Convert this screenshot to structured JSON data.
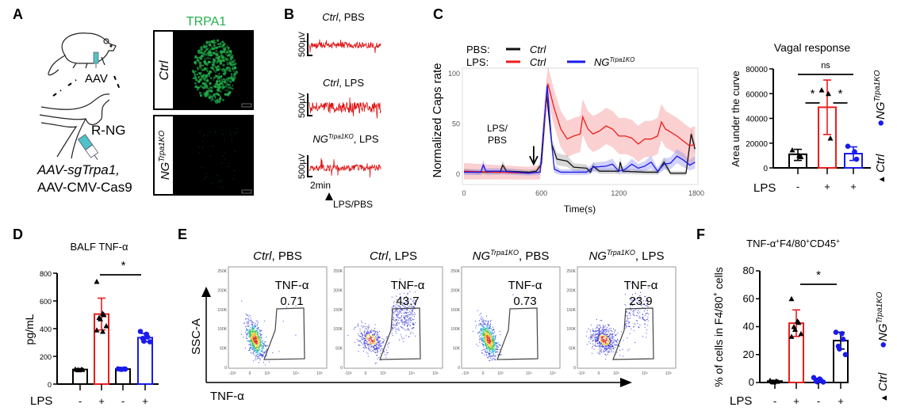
{
  "panel_labels": {
    "a": "A",
    "b": "B",
    "c": "C",
    "d": "D",
    "e": "E",
    "f": "F"
  },
  "panel_a": {
    "stain_title": "TRPA1",
    "stain_color": "#22b14c",
    "row_ctrl": "Ctrl",
    "row_ng_base": "NG",
    "row_ng_sup": "Trpa1KO",
    "injection_label": "AAV",
    "ganglion_label": "R-NG",
    "vector_line1": "AAV-sgTrpa1,",
    "vector_line2": "AAV-CMV-Cas9",
    "syringe_color": "#4fc3c9"
  },
  "panel_b": {
    "trace_color": "#e01010",
    "traces": [
      {
        "title_italic": "Ctrl",
        "title_rest": ", PBS"
      },
      {
        "title_italic": "Ctrl",
        "title_rest": ", LPS"
      },
      {
        "title_base": "NG",
        "title_sup": "Trpa1KO",
        "title_rest": ", LPS"
      }
    ],
    "scale_voltage": "500µV",
    "scale_time": "2min",
    "stimulus": "LPS/PBS"
  },
  "chart_data": [
    {
      "id": "C",
      "type": "line",
      "xlabel": "Time(s)",
      "ylabel": "Normalized Caps rate",
      "xlim": [
        0,
        1800
      ],
      "ylim": [
        -10,
        105
      ],
      "xticks": [
        "0",
        "600",
        "1200",
        "1800"
      ],
      "yticks": [
        "0",
        "50",
        "100"
      ],
      "grid": false,
      "annotation_line1": "LPS/",
      "annotation_line2": "PBS",
      "annotation_time": 540,
      "legend": {
        "row1_label": "PBS:",
        "row2_label": "LPS:",
        "ctrl": "Ctrl",
        "ng_base": "NG",
        "ng_sup": "Trpa1KO",
        "placement": "top"
      },
      "series": [
        {
          "group": "PBS",
          "name": "Ctrl",
          "color": "#111111",
          "band_color": "#9a9a9a",
          "sd": 6,
          "points": [
            [
              0,
              3
            ],
            [
              100,
              2
            ],
            [
              280,
              2
            ],
            [
              300,
              9
            ],
            [
              330,
              3
            ],
            [
              500,
              2
            ],
            [
              560,
              3
            ],
            [
              600,
              10
            ],
            [
              640,
              80
            ],
            [
              680,
              30
            ],
            [
              720,
              15
            ],
            [
              800,
              13
            ],
            [
              850,
              7
            ],
            [
              950,
              6
            ],
            [
              980,
              2
            ],
            [
              1000,
              8
            ],
            [
              1050,
              3
            ],
            [
              1200,
              3
            ],
            [
              1210,
              12
            ],
            [
              1230,
              3
            ],
            [
              1400,
              2
            ],
            [
              1500,
              2
            ],
            [
              1550,
              12
            ],
            [
              1600,
              1
            ],
            [
              1720,
              1
            ],
            [
              1760,
              40
            ],
            [
              1790,
              25
            ]
          ]
        },
        {
          "group": "LPS",
          "name": "Ctrl",
          "color": "#ee1c1c",
          "band_color": "#f48a8a",
          "sd": 18,
          "points": [
            [
              0,
              3
            ],
            [
              500,
              1
            ],
            [
              590,
              2
            ],
            [
              620,
              50
            ],
            [
              650,
              90
            ],
            [
              700,
              65
            ],
            [
              750,
              45
            ],
            [
              800,
              35
            ],
            [
              850,
              38
            ],
            [
              900,
              40
            ],
            [
              920,
              57
            ],
            [
              960,
              45
            ],
            [
              1000,
              40
            ],
            [
              1050,
              43
            ],
            [
              1100,
              48
            ],
            [
              1150,
              45
            ],
            [
              1200,
              38
            ],
            [
              1250,
              38
            ],
            [
              1300,
              36
            ],
            [
              1350,
              30
            ],
            [
              1400,
              35
            ],
            [
              1450,
              35
            ],
            [
              1500,
              38
            ],
            [
              1530,
              52
            ],
            [
              1560,
              45
            ],
            [
              1600,
              42
            ],
            [
              1650,
              38
            ],
            [
              1700,
              33
            ],
            [
              1750,
              28
            ],
            [
              1790,
              30
            ]
          ]
        },
        {
          "group": "LPS",
          "name": "NG Trpa1KO",
          "color": "#1a1aee",
          "band_color": "#8f8ff0",
          "sd": 7,
          "points": [
            [
              0,
              2
            ],
            [
              130,
              2
            ],
            [
              150,
              9
            ],
            [
              170,
              3
            ],
            [
              300,
              3
            ],
            [
              500,
              1
            ],
            [
              590,
              2
            ],
            [
              620,
              50
            ],
            [
              645,
              88
            ],
            [
              680,
              30
            ],
            [
              700,
              5
            ],
            [
              750,
              2
            ],
            [
              900,
              2
            ],
            [
              950,
              2
            ],
            [
              1000,
              7
            ],
            [
              1100,
              8
            ],
            [
              1150,
              10
            ],
            [
              1200,
              3
            ],
            [
              1250,
              5
            ],
            [
              1300,
              10
            ],
            [
              1350,
              6
            ],
            [
              1400,
              8
            ],
            [
              1450,
              12
            ],
            [
              1500,
              3
            ],
            [
              1550,
              10
            ],
            [
              1600,
              11
            ],
            [
              1650,
              18
            ],
            [
              1700,
              14
            ],
            [
              1750,
              9
            ],
            [
              1790,
              12
            ]
          ]
        }
      ]
    },
    {
      "id": "C-vagal",
      "type": "bar",
      "title": "Vagal response",
      "ylabel": "Area under the curve",
      "ylim": [
        0,
        80000
      ],
      "yticks": [
        "0",
        "20000",
        "40000",
        "60000",
        "80000"
      ],
      "row_label": "LPS",
      "categories": [
        "-",
        "+",
        "+"
      ],
      "bars": [
        {
          "value": 11000,
          "err": [
            6000,
            15000
          ],
          "color": "#000000",
          "marker": "triangle",
          "marker_color": "#000000",
          "points": [
            14500,
            10000,
            9000
          ]
        },
        {
          "value": 49000,
          "err": [
            27000,
            71000
          ],
          "color": "#ee1c1c",
          "marker": "triangle",
          "marker_color": "#000000",
          "points": [
            63000,
            60000,
            24000
          ]
        },
        {
          "value": 11500,
          "err": [
            6000,
            17000
          ],
          "color": "#1a1aee",
          "marker": "circle",
          "marker_color": "#1a1aee",
          "points": [
            17500,
            13000,
            7000
          ]
        }
      ],
      "significance": [
        {
          "text": "*",
          "between": [
            0,
            1
          ]
        },
        {
          "text": "*",
          "between": [
            1,
            2
          ]
        },
        {
          "text": "ns",
          "between": [
            0,
            2
          ]
        }
      ],
      "legend": {
        "ng_base": "NG",
        "ng_sup": "Trpa1KO",
        "ctrl": "Ctrl",
        "placement": "right"
      }
    },
    {
      "id": "D",
      "type": "bar",
      "title": "BALF TNF-α",
      "ylabel": "pg/mL",
      "ylim": [
        0,
        800
      ],
      "yticks": [
        "0",
        "200",
        "400",
        "600",
        "800"
      ],
      "row_label": "LPS",
      "categories": [
        "-",
        "+",
        "-",
        "+"
      ],
      "bars": [
        {
          "value": 105,
          "err": [
            100,
            110
          ],
          "color": "#000000",
          "marker": "triangle",
          "marker_color": "#000000",
          "points": [
            108,
            106,
            104,
            103,
            102
          ]
        },
        {
          "value": 505,
          "err": [
            390,
            620
          ],
          "color": "#ee1c1c",
          "marker": "triangle",
          "marker_color": "#000000",
          "points": [
            740,
            510,
            500,
            480,
            470,
            420,
            390,
            380
          ]
        },
        {
          "value": 108,
          "err": [
            104,
            112
          ],
          "color": "#000000",
          "marker": "circle",
          "marker_color": "#1a1aee",
          "points": [
            110,
            109,
            108,
            107,
            106
          ]
        },
        {
          "value": 335,
          "err": [
            305,
            365
          ],
          "color": "#1a1aee",
          "marker": "circle",
          "marker_color": "#1a1aee",
          "points": [
            380,
            360,
            340,
            330,
            310,
            305
          ]
        }
      ],
      "significance": [
        {
          "text": "*",
          "between": [
            1,
            3
          ]
        }
      ]
    },
    {
      "id": "E",
      "type": "scatter",
      "xlabel": "TNF-α",
      "ylabel": "SSC-A",
      "yticks": [
        "250K",
        "200K",
        "150K",
        "100K",
        "50K",
        "0"
      ],
      "xticks": [
        "-10³",
        "0",
        "10³",
        "10⁴",
        "10⁵"
      ],
      "gate_label": "TNF-α",
      "panels": [
        {
          "title_italic": "Ctrl",
          "title_rest": ", PBS",
          "gate_value": "0.71",
          "tnf_positive_percent": 0.71
        },
        {
          "title_italic": "Ctrl",
          "title_rest": ", LPS",
          "gate_value": "43.7",
          "tnf_positive_percent": 43.7
        },
        {
          "title_base": "NG",
          "title_sup": "Trpa1KO",
          "title_rest": ", PBS",
          "gate_value": "0.73",
          "tnf_positive_percent": 0.73
        },
        {
          "title_base": "NG",
          "title_sup": "Trpa1KO",
          "title_rest": ", LPS",
          "gate_value": "23.9",
          "tnf_positive_percent": 23.9
        }
      ]
    },
    {
      "id": "F",
      "type": "bar",
      "title_main": "TNF-α",
      "title_sup1": "+",
      "title_mid": "F4/80",
      "title_sup2": "+",
      "title_end": "CD45",
      "title_sup3": "+",
      "ylabel_main": "% of  cells in F4/80",
      "ylabel_sup": "+",
      "ylabel_end": " cells",
      "ylim": [
        0,
        80
      ],
      "yticks": [
        "0",
        "20",
        "40",
        "60",
        "80"
      ],
      "row_label": "LPS",
      "categories": [
        "-",
        "+",
        "-",
        "+"
      ],
      "bars": [
        {
          "value": 1,
          "err": [
            0.5,
            1.5
          ],
          "color": "#000000",
          "marker": "triangle",
          "marker_color": "#000000",
          "points": [
            1.5,
            1,
            0.8,
            0.5,
            0.3
          ]
        },
        {
          "value": 42.5,
          "err": [
            33,
            52
          ],
          "color": "#ee1c1c",
          "marker": "triangle",
          "marker_color": "#000000",
          "points": [
            60,
            44,
            43,
            40,
            38,
            35,
            33
          ]
        },
        {
          "value": 2,
          "err": [
            1,
            3
          ],
          "color": null,
          "marker": "circle",
          "marker_color": "#1a1aee",
          "points": [
            3.5,
            2.5,
            1.5,
            1,
            0.5,
            0.3
          ]
        },
        {
          "value": 30,
          "err": [
            24,
            36
          ],
          "color": "#000000",
          "marker": "circle",
          "marker_color": "#1a1aee",
          "points": [
            36,
            35,
            31,
            26,
            24,
            20
          ]
        }
      ],
      "significance": [
        {
          "text": "*",
          "between": [
            1,
            3
          ]
        }
      ],
      "legend": {
        "ng_base": "NG",
        "ng_sup": "Trpa1KO",
        "ctrl": "Ctrl",
        "placement": "right"
      }
    }
  ]
}
